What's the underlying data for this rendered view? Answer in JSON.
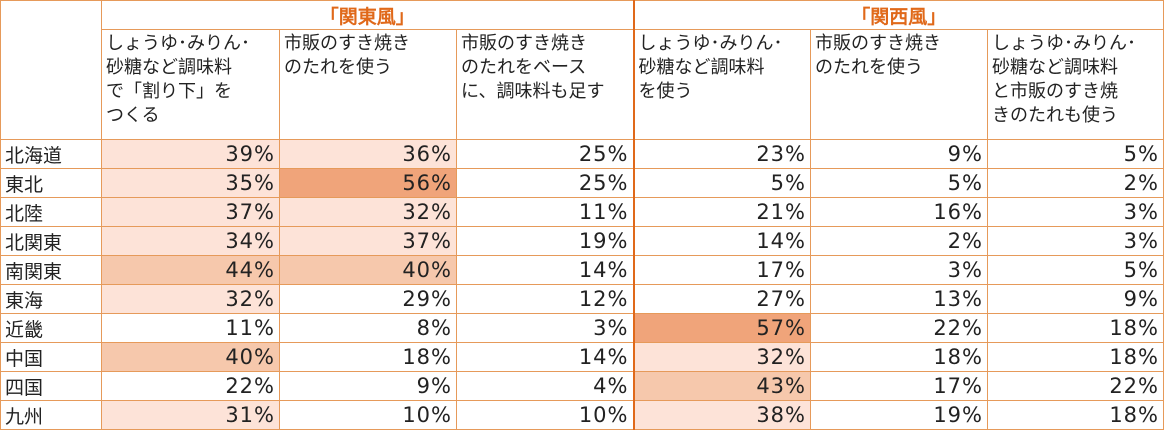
{
  "groups": [
    "「関東風」",
    "「関西風」"
  ],
  "columns": [
    "しょうゆ･みりん･\n砂糖など調味料\nで「割り下」を\nつくる",
    "市販のすき焼き\nのたれを使う",
    "市販のすき焼き\nのたれをベース\nに、調味料も足す",
    "しょうゆ･みりん･\n砂糖など調味料\nを使う",
    "市販のすき焼き\nのたれを使う",
    "しょうゆ･みりん･\n砂糖など調味料\nと市販のすき焼\nきのたれも使う"
  ],
  "colors": {
    "border": "#e69a5a",
    "group_text": "#e0691a",
    "heat_max": "#f0a47a",
    "heat_mid": "#f6c8ac",
    "heat_low": "#fde3d8"
  },
  "chart_data": {
    "type": "table",
    "groups": [
      {
        "name": "「関東風」",
        "columns": [
          0,
          1,
          2
        ]
      },
      {
        "name": "「関西風」",
        "columns": [
          3,
          4,
          5
        ]
      }
    ],
    "rows": [
      {
        "region": "北海道",
        "values": [
          "39%",
          "36%",
          "25%",
          "23%",
          "9%",
          "5%"
        ]
      },
      {
        "region": "東北",
        "values": [
          "35%",
          "56%",
          "25%",
          "5%",
          "5%",
          "2%"
        ]
      },
      {
        "region": "北陸",
        "values": [
          "37%",
          "32%",
          "11%",
          "21%",
          "16%",
          "3%"
        ]
      },
      {
        "region": "北関東",
        "values": [
          "34%",
          "37%",
          "19%",
          "14%",
          "2%",
          "3%"
        ]
      },
      {
        "region": "南関東",
        "values": [
          "44%",
          "40%",
          "14%",
          "17%",
          "3%",
          "5%"
        ]
      },
      {
        "region": "東海",
        "values": [
          "32%",
          "29%",
          "12%",
          "27%",
          "13%",
          "9%"
        ]
      },
      {
        "region": "近畿",
        "values": [
          "11%",
          "8%",
          "3%",
          "57%",
          "22%",
          "18%"
        ]
      },
      {
        "region": "中国",
        "values": [
          "40%",
          "18%",
          "14%",
          "32%",
          "18%",
          "18%"
        ]
      },
      {
        "region": "四国",
        "values": [
          "22%",
          "9%",
          "4%",
          "43%",
          "17%",
          "22%"
        ]
      },
      {
        "region": "九州",
        "values": [
          "31%",
          "10%",
          "10%",
          "38%",
          "19%",
          "18%"
        ]
      }
    ]
  }
}
